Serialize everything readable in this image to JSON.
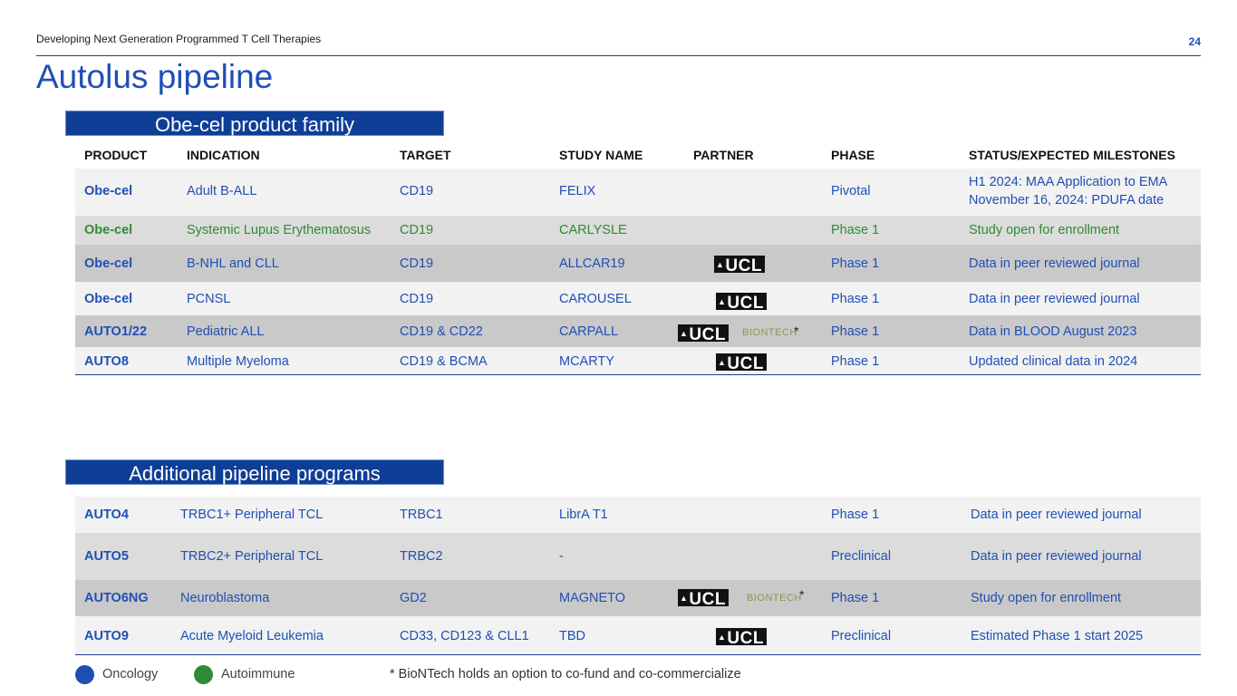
{
  "header": {
    "subtitle": "Developing Next Generation Programmed T Cell Therapies",
    "page_number": "24"
  },
  "title": "Autolus pipeline",
  "section1": {
    "label": "Obe-cel product family",
    "columns": [
      "PRODUCT",
      "INDICATION",
      "TARGET",
      "STUDY NAME",
      "PARTNER",
      "PHASE",
      "STATUS/EXPECTED MILESTONES"
    ],
    "rows": [
      {
        "product": "Obe-cel",
        "indication": "Adult B-ALL",
        "target": "CD19",
        "study": "FELIX",
        "phase": "Pivotal",
        "status": "H1 2024: MAA Application to EMA",
        "status2": "November 16, 2024: PDUFA date"
      },
      {
        "product": "Obe-cel",
        "indication": "Systemic Lupus Erythematosus",
        "target": "CD19",
        "study": "CARLYSLE",
        "phase": "Phase 1",
        "status": "Study open for enrollment"
      },
      {
        "product": "Obe-cel",
        "indication": "B-NHL and CLL",
        "target": "CD19",
        "study": "ALLCAR19",
        "phase": "Phase 1",
        "status": "Data in peer reviewed journal"
      },
      {
        "product": "Obe-cel",
        "indication": "PCNSL",
        "target": "CD19",
        "study": "CAROUSEL",
        "phase": "Phase 1",
        "status": "Data in peer reviewed journal"
      },
      {
        "product": "AUTO1/22",
        "indication": "Pediatric ALL",
        "target": "CD19 & CD22",
        "study": "CARPALL",
        "phase": "Phase 1",
        "status": "Data in BLOOD August 2023"
      },
      {
        "product": "AUTO8",
        "indication": "Multiple Myeloma",
        "target": "CD19 & BCMA",
        "study": "MCARTY",
        "phase": "Phase 1",
        "status": "Updated clinical data in 2024"
      }
    ]
  },
  "section2": {
    "label": "Additional pipeline programs",
    "rows": [
      {
        "product": "AUTO4",
        "indication": "TRBC1+ Peripheral TCL",
        "target": "TRBC1",
        "study": "LibrA T1",
        "phase": "Phase 1",
        "status": "Data in peer reviewed journal"
      },
      {
        "product": "AUTO5",
        "indication": "TRBC2+ Peripheral TCL",
        "target": "TRBC2",
        "study": "-",
        "phase": "Preclinical",
        "status": "Data in peer reviewed journal"
      },
      {
        "product": "AUTO6NG",
        "indication": "Neuroblastoma",
        "target": "GD2",
        "study": "MAGNETO",
        "phase": "Phase 1",
        "status": "Study open for enrollment"
      },
      {
        "product": "AUTO9",
        "indication": "Acute Myeloid Leukemia",
        "target": "CD33, CD123 & CLL1",
        "study": "TBD",
        "phase": "Preclinical",
        "status": "Estimated Phase 1 start 2025"
      }
    ]
  },
  "partners": {
    "ucl": "UCL",
    "biontech": "BIONTECH",
    "asterisk": "*"
  },
  "legend": {
    "oncology": "Oncology",
    "autoimmune": "Autoimmune"
  },
  "footnote": "* BioNTech holds an option to co-fund and co-commercialize",
  "colors": {
    "oncology": "#1f4fb5",
    "autoimmune": "#2e8b35",
    "header_band": "#0f3e96"
  }
}
